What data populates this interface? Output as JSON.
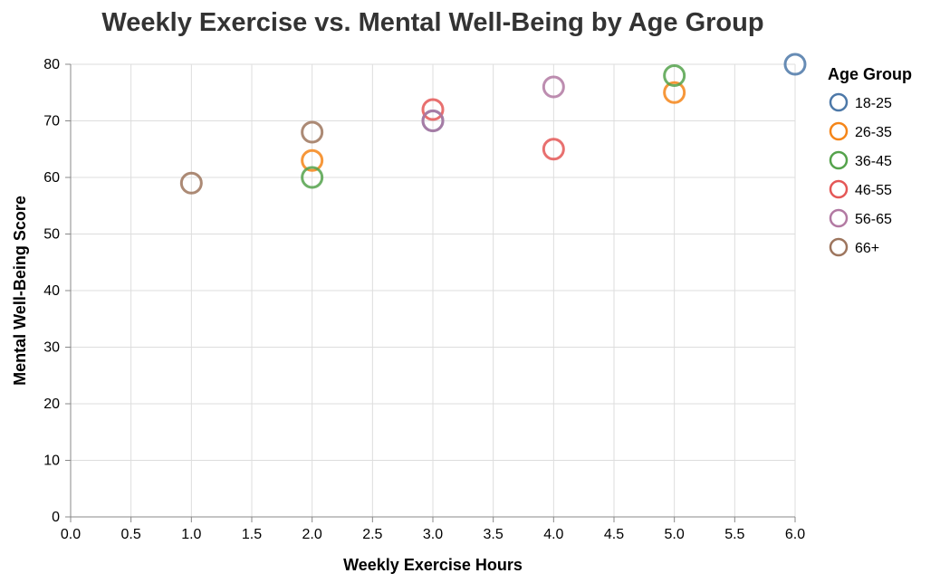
{
  "chart_data": {
    "type": "scatter",
    "title": "Weekly Exercise vs. Mental Well-Being by Age Group",
    "xlabel": "Weekly Exercise Hours",
    "ylabel": "Mental Well-Being Score",
    "xlim": [
      0,
      6
    ],
    "ylim": [
      0,
      80
    ],
    "x_ticks": [
      "0.0",
      "0.5",
      "1.0",
      "1.5",
      "2.0",
      "2.5",
      "3.0",
      "3.5",
      "4.0",
      "4.5",
      "5.0",
      "5.5",
      "6.0"
    ],
    "y_ticks": [
      "0",
      "10",
      "20",
      "30",
      "40",
      "50",
      "60",
      "70",
      "80"
    ],
    "grid": true,
    "legend_title": "Age Group",
    "legend_position": "right",
    "series": [
      {
        "name": "18-25",
        "color": "#4c78a8",
        "points": [
          {
            "x": 3,
            "y": 70
          },
          {
            "x": 6,
            "y": 80
          }
        ]
      },
      {
        "name": "26-35",
        "color": "#f58518",
        "points": [
          {
            "x": 2,
            "y": 63
          },
          {
            "x": 5,
            "y": 75
          }
        ]
      },
      {
        "name": "36-45",
        "color": "#54a24b",
        "points": [
          {
            "x": 2,
            "y": 60
          },
          {
            "x": 5,
            "y": 78
          }
        ]
      },
      {
        "name": "46-55",
        "color": "#e45756",
        "points": [
          {
            "x": 3,
            "y": 72
          },
          {
            "x": 4,
            "y": 65
          }
        ]
      },
      {
        "name": "56-65",
        "color": "#b279a2",
        "points": [
          {
            "x": 3,
            "y": 70
          },
          {
            "x": 4,
            "y": 76
          }
        ]
      },
      {
        "name": "66+",
        "color": "#9d755d",
        "points": [
          {
            "x": 1,
            "y": 59
          },
          {
            "x": 2,
            "y": 68
          }
        ]
      }
    ]
  }
}
